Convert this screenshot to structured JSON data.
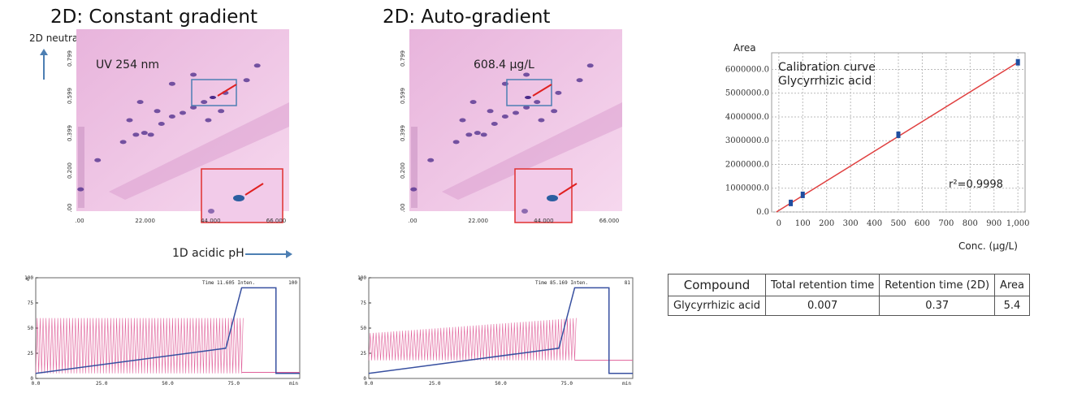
{
  "titles": {
    "left": "2D: Constant gradient",
    "right": "2D: Auto-gradient"
  },
  "heatmap_labels": {
    "y_axis": "2D neutral pH",
    "x_axis": "1D acidic pH",
    "detector": "UV 254 nm",
    "concentration": "608.4 µg/L"
  },
  "colors": {
    "heat_bg": "#f1c8e7",
    "spot": "#4a2a8a",
    "arrow": "#e02020",
    "box_blue": "#4d7fb3",
    "box_red": "#e03030",
    "cal_line": "#e04040",
    "cal_point": "#1f4ea0",
    "pump": "#e0609a",
    "gradient": "#3850a0"
  },
  "chart_data": [
    {
      "type": "heatmap",
      "panel": "constant",
      "x_ticks": [
        ".00",
        "22.000",
        "44.000",
        "66.000"
      ],
      "y_ticks": [
        ".00",
        "0.200",
        "0.399",
        "0.599",
        "0.799"
      ]
    },
    {
      "type": "heatmap",
      "panel": "auto",
      "x_ticks": [
        ".00",
        "22.000",
        "44.000",
        "66.000"
      ],
      "y_ticks": [
        ".00",
        "0.200",
        "0.399",
        "0.599",
        "0.799"
      ]
    },
    {
      "type": "scatter",
      "panel": "calibration",
      "ylabel": "Area",
      "xlabel": "Conc. (µg/L)",
      "annotation_lines": [
        "Calibration curve",
        "Glycyrrhizic acid"
      ],
      "r2_text": "r²=0.9998",
      "x_ticks": [
        "0",
        "100",
        "200",
        "300",
        "400",
        "500",
        "600",
        "700",
        "800",
        "900",
        "1,000"
      ],
      "y_ticks": [
        "0.0",
        "1000000.0",
        "2000000.0",
        "3000000.0",
        "4000000.0",
        "5000000.0",
        "6000000.0"
      ],
      "xlim": [
        -30,
        1030
      ],
      "ylim": [
        0,
        6700000
      ],
      "x": [
        50,
        100,
        500,
        1000
      ],
      "y": [
        380000,
        720000,
        3250000,
        6300000
      ],
      "fit": {
        "x": [
          -10,
          1000
        ],
        "y": [
          0,
          6300000
        ]
      }
    },
    {
      "type": "line",
      "panel": "trace-constant",
      "header": "Time 11.605  Inten.",
      "header_value": "100",
      "x_ticks": [
        "0.0",
        "25.0",
        "50.0",
        "75.0"
      ],
      "x_unit": "min",
      "y_ticks": [
        "0",
        "25",
        "50",
        "75",
        "100"
      ],
      "y_unit": "%",
      "gradient": {
        "x": [
          0,
          72,
          78,
          91,
          91,
          100
        ],
        "y": [
          5,
          30,
          90,
          90,
          5,
          5
        ]
      },
      "pump": {
        "x_end": 78,
        "y_low": 5,
        "y_high_start": 60,
        "y_high_end": 60,
        "after_level": 6
      }
    },
    {
      "type": "line",
      "panel": "trace-auto",
      "header": "Time 85.169  Inten.",
      "header_value": "81",
      "x_ticks": [
        "0.0",
        "25.0",
        "50.0",
        "75.0"
      ],
      "x_unit": "min",
      "y_ticks": [
        "0",
        "25",
        "50",
        "75",
        "100"
      ],
      "y_unit": "%",
      "gradient": {
        "x": [
          0,
          72,
          78,
          91,
          91,
          100
        ],
        "y": [
          5,
          30,
          90,
          90,
          5,
          5
        ]
      },
      "pump": {
        "x_end": 78,
        "y_low": 18,
        "y_high_start": 45,
        "y_high_end": 60,
        "after_level": 18
      }
    }
  ],
  "table": {
    "headers": [
      "Compound",
      "Total retention time",
      "Retention time (2D)",
      "Area"
    ],
    "rows": [
      [
        "Glycyrrhizic acid",
        "0.007",
        "0.37",
        "5.4"
      ]
    ]
  }
}
